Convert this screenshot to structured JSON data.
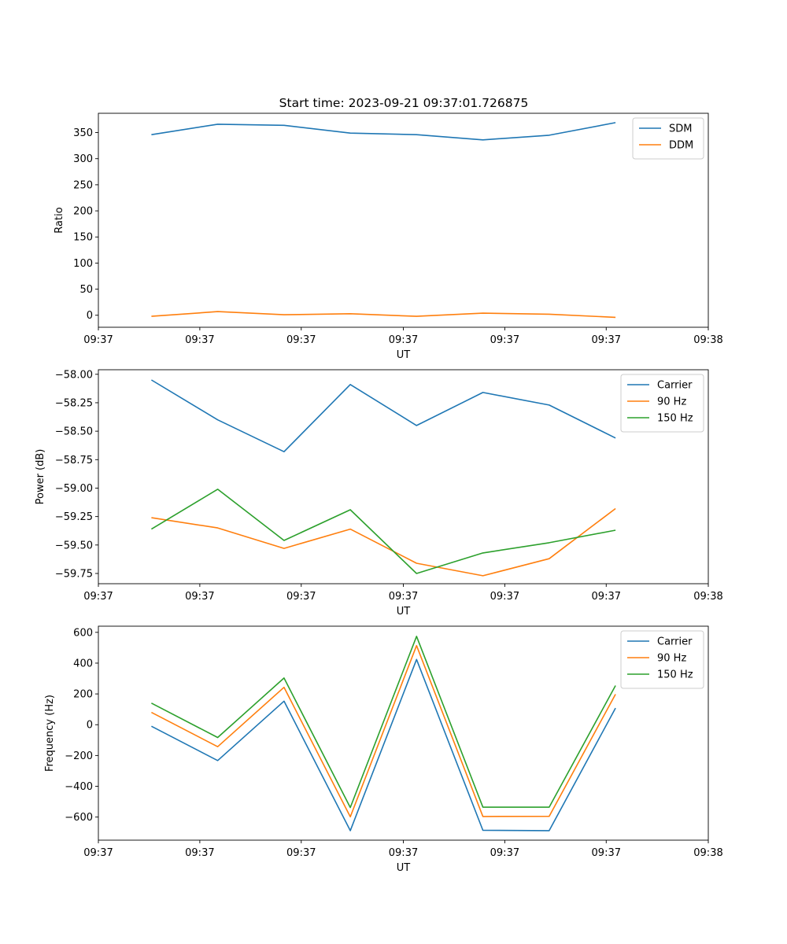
{
  "title": "Start time: 2023-09-21 09:37:01.726875",
  "colors": {
    "blue": "#1f77b4",
    "orange": "#ff7f0e",
    "green": "#2ca02c"
  },
  "chart_data": [
    {
      "type": "line",
      "xlabel": "UT",
      "ylabel": "Ratio",
      "x": [
        1,
        2,
        3,
        4,
        5,
        6,
        7,
        8
      ],
      "xlim": [
        0.2,
        9.4
      ],
      "ylim": [
        -23,
        387
      ],
      "yticks": [
        0,
        50,
        100,
        150,
        200,
        250,
        300,
        350
      ],
      "ytick_labels": [
        "0",
        "50",
        "100",
        "150",
        "200",
        "250",
        "300",
        "350"
      ],
      "xticks": [
        0.2,
        1.73,
        3.26,
        4.8,
        6.33,
        7.86,
        9.4
      ],
      "xtick_labels": [
        "09:37",
        "09:37",
        "09:37",
        "09:37",
        "09:37",
        "09:37",
        "09:38"
      ],
      "legend_position": "top-right",
      "series": [
        {
          "name": "SDM",
          "color": "#1f77b4",
          "values": [
            346,
            366,
            364,
            349,
            346,
            336,
            345,
            369
          ]
        },
        {
          "name": "DDM",
          "color": "#ff7f0e",
          "values": [
            -2,
            7,
            1,
            3,
            -2,
            4,
            2,
            -4
          ]
        }
      ]
    },
    {
      "type": "line",
      "xlabel": "UT",
      "ylabel": "Power (dB)",
      "x": [
        1,
        2,
        3,
        4,
        5,
        6,
        7,
        8
      ],
      "xlim": [
        0.2,
        9.4
      ],
      "ylim": [
        -59.84,
        -57.96
      ],
      "yticks": [
        -59.75,
        -59.5,
        -59.25,
        -59.0,
        -58.75,
        -58.5,
        -58.25,
        -58.0
      ],
      "ytick_labels": [
        "−59.75",
        "−59.50",
        "−59.25",
        "−59.00",
        "−58.75",
        "−58.50",
        "−58.25",
        "−58.00"
      ],
      "xticks": [
        0.2,
        1.73,
        3.26,
        4.8,
        6.33,
        7.86,
        9.4
      ],
      "xtick_labels": [
        "09:37",
        "09:37",
        "09:37",
        "09:37",
        "09:37",
        "09:37",
        "09:38"
      ],
      "legend_position": "top-right",
      "series": [
        {
          "name": "Carrier",
          "color": "#1f77b4",
          "values": [
            -58.05,
            -58.4,
            -58.68,
            -58.09,
            -58.45,
            -58.16,
            -58.27,
            -58.56
          ]
        },
        {
          "name": "90 Hz",
          "color": "#ff7f0e",
          "values": [
            -59.26,
            -59.35,
            -59.53,
            -59.36,
            -59.66,
            -59.77,
            -59.62,
            -59.18
          ]
        },
        {
          "name": "150 Hz",
          "color": "#2ca02c",
          "values": [
            -59.36,
            -59.01,
            -59.46,
            -59.19,
            -59.75,
            -59.57,
            -59.48,
            -59.37
          ]
        }
      ]
    },
    {
      "type": "line",
      "xlabel": "UT",
      "ylabel": "Frequency (Hz)",
      "x": [
        1,
        2,
        3,
        4,
        5,
        6,
        7,
        8
      ],
      "xlim": [
        0.2,
        9.4
      ],
      "ylim": [
        -750,
        640
      ],
      "yticks": [
        -600,
        -400,
        -200,
        0,
        200,
        400,
        600
      ],
      "ytick_labels": [
        "−600",
        "−400",
        "−200",
        "0",
        "200",
        "400",
        "600"
      ],
      "xticks": [
        0.2,
        1.73,
        3.26,
        4.8,
        6.33,
        7.86,
        9.4
      ],
      "xtick_labels": [
        "09:37",
        "09:37",
        "09:37",
        "09:37",
        "09:37",
        "09:37",
        "09:38"
      ],
      "legend_position": "top-right",
      "series": [
        {
          "name": "Carrier",
          "color": "#1f77b4",
          "values": [
            -10,
            -233,
            153,
            -688,
            424,
            -686,
            -688,
            108
          ]
        },
        {
          "name": "90 Hz",
          "color": "#ff7f0e",
          "values": [
            80,
            -143,
            243,
            -598,
            514,
            -596,
            -595,
            198
          ]
        },
        {
          "name": "150 Hz",
          "color": "#2ca02c",
          "values": [
            140,
            -83,
            303,
            -538,
            574,
            -536,
            -536,
            254
          ]
        }
      ]
    }
  ]
}
